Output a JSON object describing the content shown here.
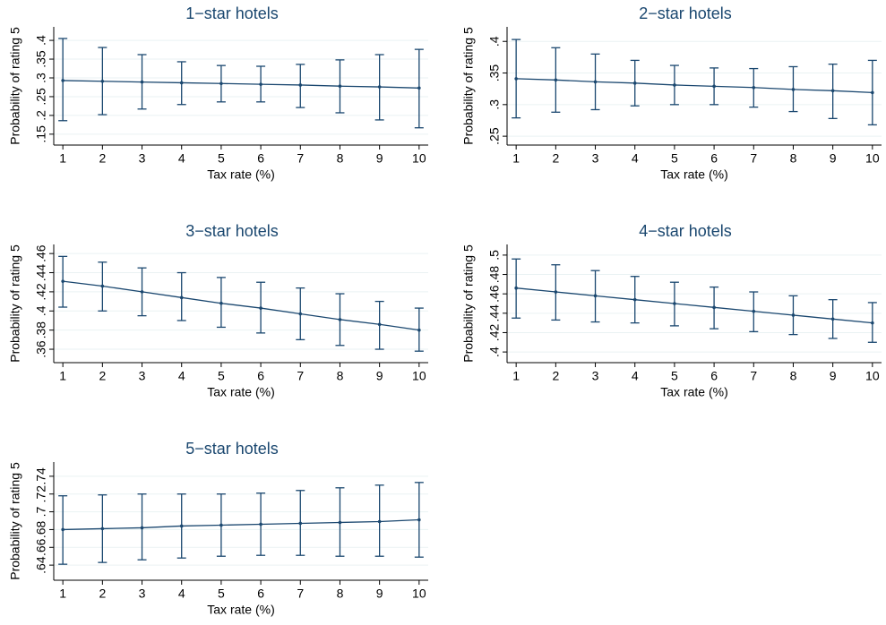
{
  "chart_data": [
    {
      "type": "line",
      "title": "1−star hotels",
      "xlabel": "Tax rate (%)",
      "ylabel": "Probability of rating 5",
      "x": [
        1,
        2,
        3,
        4,
        5,
        6,
        7,
        8,
        9,
        10
      ],
      "xlim": [
        0.77,
        10.23
      ],
      "xticks": [
        1,
        2,
        3,
        4,
        5,
        6,
        7,
        8,
        9,
        10
      ],
      "ylim": [
        0.121,
        0.436
      ],
      "yticks": [
        {
          "value": 0.15,
          "label": ".15"
        },
        {
          "value": 0.2,
          "label": ".2"
        },
        {
          "value": 0.25,
          "label": ".25"
        },
        {
          "value": 0.3,
          "label": ".3"
        },
        {
          "value": 0.35,
          "label": ".35"
        },
        {
          "value": 0.4,
          "label": ".4"
        }
      ],
      "grid": true,
      "series": [
        {
          "color": "#1a476f",
          "values": [
            0.293,
            0.291,
            0.289,
            0.287,
            0.285,
            0.283,
            0.281,
            0.278,
            0.276,
            0.273
          ],
          "lower": [
            0.186,
            0.202,
            0.217,
            0.229,
            0.236,
            0.236,
            0.221,
            0.207,
            0.188,
            0.167
          ],
          "upper": [
            0.405,
            0.381,
            0.362,
            0.343,
            0.333,
            0.331,
            0.336,
            0.348,
            0.362,
            0.376
          ]
        }
      ]
    },
    {
      "type": "line",
      "title": "2−star hotels",
      "xlabel": "Tax rate (%)",
      "ylabel": "Probability of rating 5",
      "x": [
        1,
        2,
        3,
        4,
        5,
        6,
        7,
        8,
        9,
        10
      ],
      "xlim": [
        0.77,
        10.23
      ],
      "xticks": [
        1,
        2,
        3,
        4,
        5,
        6,
        7,
        8,
        9,
        10
      ],
      "ylim": [
        0.236,
        0.423
      ],
      "yticks": [
        {
          "value": 0.25,
          "label": ".25"
        },
        {
          "value": 0.3,
          "label": ".3"
        },
        {
          "value": 0.35,
          "label": ".35"
        },
        {
          "value": 0.4,
          "label": ".4"
        }
      ],
      "grid": true,
      "series": [
        {
          "color": "#1a476f",
          "values": [
            0.341,
            0.339,
            0.336,
            0.334,
            0.331,
            0.329,
            0.327,
            0.324,
            0.322,
            0.319
          ],
          "lower": [
            0.279,
            0.288,
            0.292,
            0.298,
            0.3,
            0.3,
            0.296,
            0.289,
            0.278,
            0.268
          ],
          "upper": [
            0.403,
            0.39,
            0.38,
            0.37,
            0.362,
            0.358,
            0.357,
            0.36,
            0.364,
            0.37
          ]
        }
      ]
    },
    {
      "type": "line",
      "title": "3−star hotels",
      "xlabel": "Tax rate (%)",
      "ylabel": "Probability of rating 5",
      "x": [
        1,
        2,
        3,
        4,
        5,
        6,
        7,
        8,
        9,
        10
      ],
      "xlim": [
        0.77,
        10.23
      ],
      "xticks": [
        1,
        2,
        3,
        4,
        5,
        6,
        7,
        8,
        9,
        10
      ],
      "ylim": [
        0.346,
        0.4695
      ],
      "yticks": [
        {
          "value": 0.36,
          "label": ".36"
        },
        {
          "value": 0.38,
          "label": ".38"
        },
        {
          "value": 0.4,
          "label": ".4"
        },
        {
          "value": 0.42,
          "label": ".42"
        },
        {
          "value": 0.44,
          "label": ".44"
        },
        {
          "value": 0.46,
          "label": ".46"
        }
      ],
      "grid": true,
      "series": [
        {
          "color": "#1a476f",
          "values": [
            0.431,
            0.426,
            0.42,
            0.414,
            0.408,
            0.403,
            0.397,
            0.391,
            0.386,
            0.38
          ],
          "lower": [
            0.404,
            0.4,
            0.395,
            0.39,
            0.383,
            0.377,
            0.37,
            0.364,
            0.36,
            0.358
          ],
          "upper": [
            0.457,
            0.451,
            0.445,
            0.44,
            0.435,
            0.43,
            0.424,
            0.418,
            0.41,
            0.403
          ]
        }
      ]
    },
    {
      "type": "line",
      "title": "4−star hotels",
      "xlabel": "Tax rate (%)",
      "ylabel": "Probability of rating 5",
      "x": [
        1,
        2,
        3,
        4,
        5,
        6,
        7,
        8,
        9,
        10
      ],
      "xlim": [
        0.77,
        10.23
      ],
      "xticks": [
        1,
        2,
        3,
        4,
        5,
        6,
        7,
        8,
        9,
        10
      ],
      "ylim": [
        0.389,
        0.511
      ],
      "yticks": [
        {
          "value": 0.4,
          "label": ".4"
        },
        {
          "value": 0.42,
          "label": ".42"
        },
        {
          "value": 0.44,
          "label": ".44"
        },
        {
          "value": 0.46,
          "label": ".46"
        },
        {
          "value": 0.48,
          "label": ".48"
        },
        {
          "value": 0.5,
          "label": ".5"
        }
      ],
      "grid": true,
      "series": [
        {
          "color": "#1a476f",
          "values": [
            0.466,
            0.462,
            0.458,
            0.454,
            0.45,
            0.446,
            0.442,
            0.438,
            0.434,
            0.43
          ],
          "lower": [
            0.435,
            0.433,
            0.431,
            0.43,
            0.427,
            0.424,
            0.421,
            0.418,
            0.414,
            0.41
          ],
          "upper": [
            0.496,
            0.49,
            0.484,
            0.478,
            0.472,
            0.467,
            0.462,
            0.458,
            0.454,
            0.451
          ]
        }
      ]
    },
    {
      "type": "line",
      "title": "5−star hotels",
      "xlabel": "Tax rate (%)",
      "ylabel": "Probability of rating 5",
      "x": [
        1,
        2,
        3,
        4,
        5,
        6,
        7,
        8,
        9,
        10
      ],
      "xlim": [
        0.77,
        10.23
      ],
      "xticks": [
        1,
        2,
        3,
        4,
        5,
        6,
        7,
        8,
        9,
        10
      ],
      "ylim": [
        0.623,
        0.756
      ],
      "yticks": [
        {
          "value": 0.64,
          "label": ".64"
        },
        {
          "value": 0.66,
          "label": ".66"
        },
        {
          "value": 0.68,
          "label": ".68"
        },
        {
          "value": 0.7,
          "label": ".7"
        },
        {
          "value": 0.72,
          "label": ".72"
        },
        {
          "value": 0.74,
          "label": ".74"
        }
      ],
      "grid": true,
      "series": [
        {
          "color": "#1a476f",
          "values": [
            0.68,
            0.681,
            0.682,
            0.684,
            0.685,
            0.686,
            0.687,
            0.688,
            0.689,
            0.691
          ],
          "lower": [
            0.641,
            0.643,
            0.646,
            0.648,
            0.65,
            0.651,
            0.651,
            0.65,
            0.65,
            0.649
          ],
          "upper": [
            0.718,
            0.719,
            0.72,
            0.72,
            0.72,
            0.721,
            0.724,
            0.727,
            0.73,
            0.733
          ]
        }
      ]
    }
  ]
}
